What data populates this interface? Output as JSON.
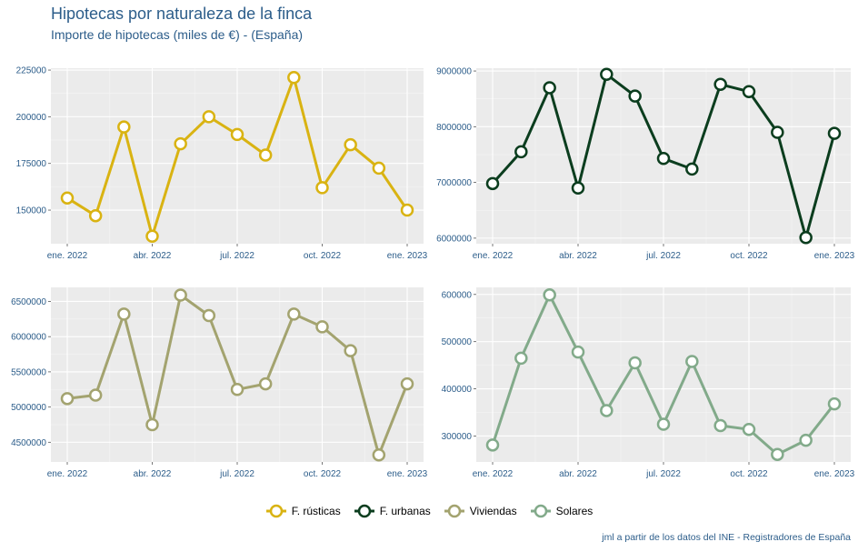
{
  "header": {
    "title": "Hipotecas por naturaleza de la finca",
    "subtitle": "Importe de hipotecas (miles de €) - (España)"
  },
  "caption": "jml a partir de los datos del INE - Registradores de España",
  "colors": {
    "panel_bg": "#ebebeb",
    "grid": "#ffffff",
    "F. rústicas": "#d9b312",
    "F. urbanas": "#0b3d1e",
    "Viviendas": "#a3a36f",
    "Solares": "#82aa8a"
  },
  "chart_data": [
    {
      "type": "line",
      "name": "F. rústicas",
      "x_tick_labels": [
        "ene. 2022",
        "abr. 2022",
        "jul. 2022",
        "oct. 2022",
        "ene. 2023"
      ],
      "x": [
        "ene. 2022",
        "feb. 2022",
        "mar. 2022",
        "abr. 2022",
        "may. 2022",
        "jun. 2022",
        "jul. 2022",
        "ago. 2022",
        "sep. 2022",
        "oct. 2022",
        "nov. 2022",
        "dic. 2022",
        "ene. 2023"
      ],
      "values": [
        156500,
        147000,
        194500,
        136000,
        185500,
        200000,
        190500,
        179500,
        221000,
        162000,
        185000,
        172500,
        150000
      ],
      "ylim": [
        132000,
        226000
      ],
      "y_ticks": [
        150000,
        175000,
        200000,
        225000
      ],
      "y_tick_labels": [
        "150000",
        "175000",
        "200000",
        "225000"
      ]
    },
    {
      "type": "line",
      "name": "F. urbanas",
      "x_tick_labels": [
        "ene. 2022",
        "abr. 2022",
        "jul. 2022",
        "oct. 2022",
        "ene. 2023"
      ],
      "x": [
        "ene. 2022",
        "feb. 2022",
        "mar. 2022",
        "abr. 2022",
        "may. 2022",
        "jun. 2022",
        "jul. 2022",
        "ago. 2022",
        "sep. 2022",
        "oct. 2022",
        "nov. 2022",
        "dic. 2022",
        "ene. 2023"
      ],
      "values": [
        6980000,
        7550000,
        8700000,
        6900000,
        8940000,
        8550000,
        7430000,
        7240000,
        8760000,
        8630000,
        7900000,
        6010000,
        7880000
      ],
      "ylim": [
        5900000,
        9050000
      ],
      "y_ticks": [
        6000000,
        7000000,
        8000000,
        9000000
      ],
      "y_tick_labels": [
        "6000000",
        "7000000",
        "8000000",
        "9000000"
      ]
    },
    {
      "type": "line",
      "name": "Viviendas",
      "x_tick_labels": [
        "ene. 2022",
        "abr. 2022",
        "jul. 2022",
        "oct. 2022",
        "ene. 2023"
      ],
      "x": [
        "ene. 2022",
        "feb. 2022",
        "mar. 2022",
        "abr. 2022",
        "may. 2022",
        "jun. 2022",
        "jul. 2022",
        "ago. 2022",
        "sep. 2022",
        "oct. 2022",
        "nov. 2022",
        "dic. 2022",
        "ene. 2023"
      ],
      "values": [
        5120000,
        5170000,
        6320000,
        4750000,
        6590000,
        6300000,
        5250000,
        5330000,
        6320000,
        6140000,
        5800000,
        4320000,
        5330000
      ],
      "ylim": [
        4220000,
        6700000
      ],
      "y_ticks": [
        4500000,
        5000000,
        5500000,
        6000000,
        6500000
      ],
      "y_tick_labels": [
        "4500000",
        "5000000",
        "5500000",
        "6000000",
        "6500000"
      ]
    },
    {
      "type": "line",
      "name": "Solares",
      "x_tick_labels": [
        "ene. 2022",
        "abr. 2022",
        "jul. 2022",
        "oct. 2022",
        "ene. 2023"
      ],
      "x": [
        "ene. 2022",
        "feb. 2022",
        "mar. 2022",
        "abr. 2022",
        "may. 2022",
        "jun. 2022",
        "jul. 2022",
        "ago. 2022",
        "sep. 2022",
        "oct. 2022",
        "nov. 2022",
        "dic. 2022",
        "ene. 2023"
      ],
      "values": [
        281000,
        465000,
        599000,
        478000,
        354000,
        455000,
        325000,
        458000,
        322000,
        314000,
        261000,
        291000,
        368000
      ],
      "ylim": [
        245000,
        615000
      ],
      "y_ticks": [
        300000,
        400000,
        500000,
        600000
      ],
      "y_tick_labels": [
        "300000",
        "400000",
        "500000",
        "600000"
      ]
    }
  ],
  "legend": {
    "items": [
      {
        "label": "F. rústicas",
        "color": "#d9b312"
      },
      {
        "label": "F. urbanas",
        "color": "#0b3d1e"
      },
      {
        "label": "Viviendas",
        "color": "#a3a36f"
      },
      {
        "label": "Solares",
        "color": "#82aa8a"
      }
    ]
  }
}
